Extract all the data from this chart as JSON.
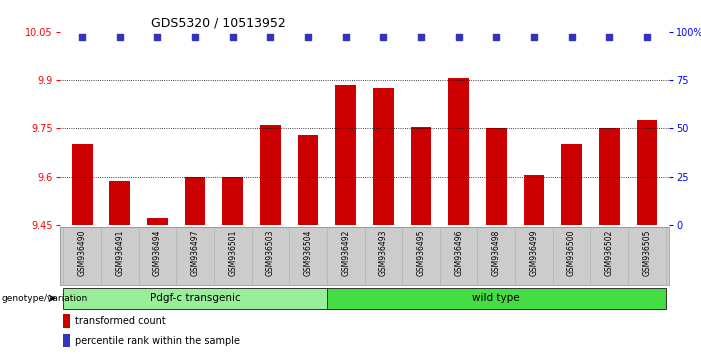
{
  "title": "GDS5320 / 10513952",
  "samples": [
    "GSM936490",
    "GSM936491",
    "GSM936494",
    "GSM936497",
    "GSM936501",
    "GSM936503",
    "GSM936504",
    "GSM936492",
    "GSM936493",
    "GSM936495",
    "GSM936496",
    "GSM936498",
    "GSM936499",
    "GSM936500",
    "GSM936502",
    "GSM936505"
  ],
  "bar_values": [
    9.7,
    9.585,
    9.47,
    9.6,
    9.6,
    9.76,
    9.73,
    9.885,
    9.875,
    9.755,
    9.905,
    9.75,
    9.605,
    9.7,
    9.75,
    9.775
  ],
  "bar_color": "#cc0000",
  "percentile_color": "#3333bb",
  "ylim_left": [
    9.45,
    10.05
  ],
  "ylim_right": [
    0,
    100
  ],
  "yticks_left": [
    9.45,
    9.6,
    9.75,
    9.9,
    10.05
  ],
  "yticks_right": [
    0,
    25,
    50,
    75,
    100
  ],
  "ytick_labels_right": [
    "0",
    "25",
    "50",
    "75",
    "100%"
  ],
  "gridlines": [
    9.6,
    9.75,
    9.9
  ],
  "group1_label": "Pdgf-c transgenic",
  "group2_label": "wild type",
  "group1_count": 7,
  "group2_count": 9,
  "group1_color": "#99ee99",
  "group2_color": "#44dd44",
  "xlabel_genotype": "genotype/variation",
  "legend_bar_label": "transformed count",
  "legend_pct_label": "percentile rank within the sample",
  "bg_color": "#ffffff",
  "plot_bg": "#ffffff",
  "sample_bg": "#cccccc"
}
